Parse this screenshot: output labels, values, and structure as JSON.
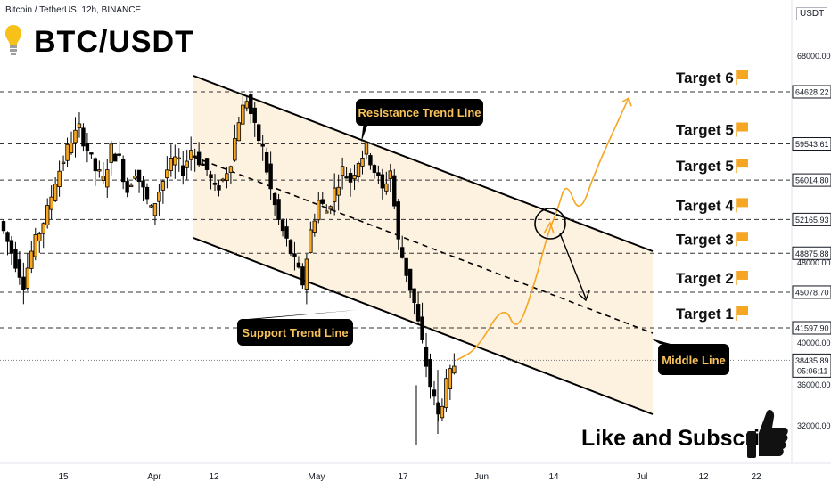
{
  "header": {
    "symbol": "Bitcoin / TetherUS, 12h, BINANCE",
    "title": "BTC/USDT"
  },
  "axis": {
    "currency": "USDT",
    "scale_labels": [
      "68000.00",
      "48000.00",
      "40000.00",
      "36000.00",
      "32000.00"
    ],
    "countdown": "05:06:11"
  },
  "footer": {
    "cta": "Like and Subscribe"
  },
  "annotations": {
    "resistance": "Resistance Trend Line",
    "support": "Support Trend Line",
    "middle": "Middle Line"
  },
  "colors": {
    "candle": "#000000",
    "candle_up_body": "#f5a623",
    "channel_fill": "#fdf0dc",
    "projection": "#f5a623",
    "label_bg": "#000000",
    "label_text": "#f7c25b"
  },
  "chart_data": {
    "type": "candlestick",
    "title": "BTC/USDT",
    "ylim": [
      30000,
      72000
    ],
    "x_ticks": [
      "15",
      "Apr",
      "12",
      "May",
      "17",
      "Jun",
      "14",
      "Jul",
      "12",
      "22"
    ],
    "current_price": 38435.89,
    "targets": [
      {
        "name": "Target 1",
        "price": 41597.9,
        "label": "41597.90"
      },
      {
        "name": "Target 2",
        "price": 45078.7,
        "label": "45078.70"
      },
      {
        "name": "Target 3",
        "price": 48875.88,
        "label": "48875.88"
      },
      {
        "name": "Target 4",
        "price": 52165.93,
        "label": "52165.93"
      },
      {
        "name": "Target 5",
        "price": 56014.8,
        "label": "56014.80"
      },
      {
        "name": "Target 5",
        "price": 59543.61,
        "label": "59543.61"
      },
      {
        "name": "Target 6",
        "price": 64628.22,
        "label": "64628.22"
      }
    ],
    "price_path": [
      52000,
      50000,
      48000,
      46000,
      49000,
      51000,
      53000,
      56000,
      58000,
      60000,
      61000,
      59000,
      57000,
      56000,
      59000,
      58000,
      55000,
      57000,
      55000,
      53000,
      55000,
      57000,
      58000,
      57000,
      59000,
      58000,
      57000,
      55000,
      56000,
      58000,
      62000,
      64000,
      61000,
      59000,
      55000,
      52000,
      50000,
      48000,
      46000,
      51000,
      54000,
      53000,
      55000,
      57000,
      56000,
      58000,
      59000,
      57000,
      55000,
      57000,
      50000,
      47000,
      44000,
      40000,
      36000,
      33000,
      36000,
      38000,
      37000,
      38435.89
    ],
    "projection_path": [
      38435.89,
      39500,
      44000,
      41000,
      46000,
      51000,
      53000,
      56000,
      52500,
      57000,
      64000
    ]
  }
}
